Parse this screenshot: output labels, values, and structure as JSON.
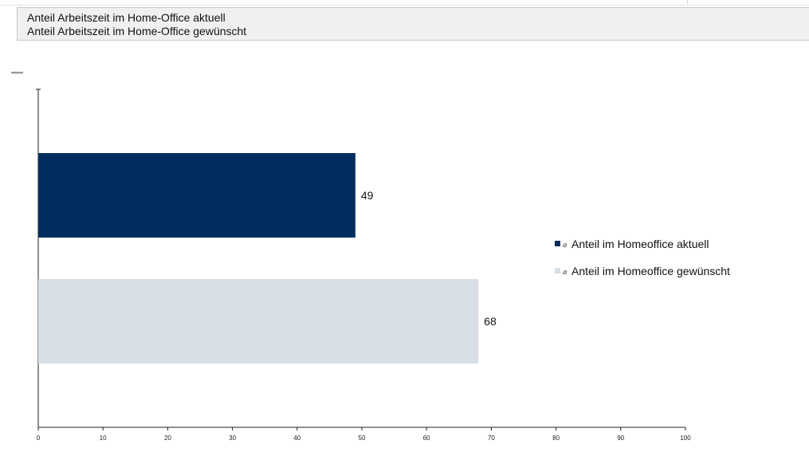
{
  "header": {
    "line1": "Anteil Arbeitszeit im Home-Office aktuell",
    "line2": "Anteil Arbeitszeit im Home-Office gewünscht"
  },
  "legend": {
    "symbol": "⌀",
    "placement": "right"
  },
  "chart_data": {
    "type": "bar",
    "orientation": "horizontal",
    "xlim": [
      0,
      100
    ],
    "xticks": [
      0,
      10,
      20,
      30,
      40,
      50,
      60,
      70,
      80,
      90,
      100
    ],
    "grid": false,
    "series": [
      {
        "name": "Anteil im Homeoffice aktuell",
        "value": 49,
        "label": "49",
        "color": "#002d5f"
      },
      {
        "name": "Anteil im Homeoffice gewünscht",
        "value": 68,
        "label": "68",
        "color": "#d9dfe6"
      }
    ]
  }
}
